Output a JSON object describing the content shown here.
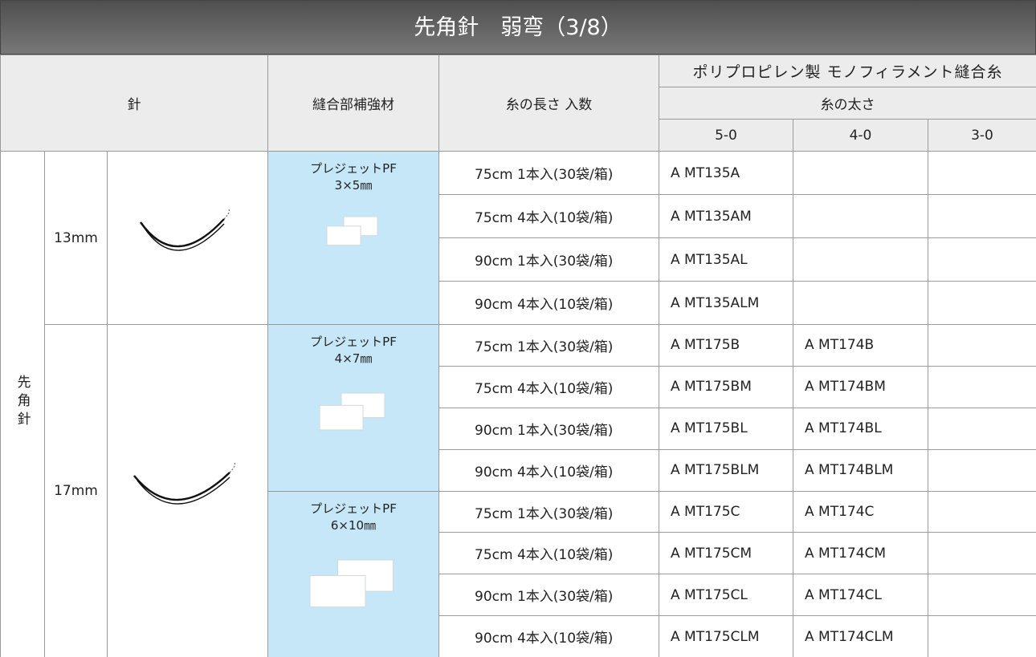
{
  "title": "先角針　弱弯（3/8）",
  "header": {
    "needle": "針",
    "reinforcement": "縫合部補強材",
    "length": "糸の長さ 入数",
    "suture": "ポリプロピレン製 モノフィラメント縫合糸",
    "thickness": "糸の太さ",
    "sizes": [
      "5-0",
      "4-0",
      "3-0"
    ]
  },
  "needle_type": "先角針",
  "needles": [
    {
      "length": "13mm",
      "pledgets": [
        {
          "name": "プレジェットPF",
          "size": "3×5㎜",
          "rows": [
            {
              "length": "75cm 1本入(30袋/箱)",
              "codes": [
                "A MT135A",
                null,
                null
              ]
            },
            {
              "length": "75cm 4本入(10袋/箱)",
              "codes": [
                "A MT135AM",
                null,
                null
              ]
            },
            {
              "length": "90cm 1本入(30袋/箱)",
              "codes": [
                "A MT135AL",
                null,
                null
              ]
            },
            {
              "length": "90cm 4本入(10袋/箱)",
              "codes": [
                "A MT135ALM",
                null,
                null
              ]
            }
          ]
        }
      ]
    },
    {
      "length": "17mm",
      "pledgets": [
        {
          "name": "プレジェットPF",
          "size": "4×7㎜",
          "rows": [
            {
              "length": "75cm 1本入(30袋/箱)",
              "codes": [
                "A MT175B",
                "A MT174B",
                null
              ]
            },
            {
              "length": "75cm 4本入(10袋/箱)",
              "codes": [
                "A MT175BM",
                "A MT174BM",
                null
              ]
            },
            {
              "length": "90cm 1本入(30袋/箱)",
              "codes": [
                "A MT175BL",
                "A MT174BL",
                null
              ]
            },
            {
              "length": "90cm 4本入(10袋/箱)",
              "codes": [
                "A MT175BLM",
                "A MT174BLM",
                null
              ]
            }
          ]
        },
        {
          "name": "プレジェットPF",
          "size": "6×10㎜",
          "rows": [
            {
              "length": "75cm 1本入(30袋/箱)",
              "codes": [
                "A MT175C",
                "A MT174C",
                null
              ]
            },
            {
              "length": "75cm 4本入(10袋/箱)",
              "codes": [
                "A MT175CM",
                "A MT174CM",
                null
              ]
            },
            {
              "length": "90cm 1本入(30袋/箱)",
              "codes": [
                "A MT175CL",
                "A MT174CL",
                null
              ]
            },
            {
              "length": "90cm 4本入(10袋/箱)",
              "codes": [
                "A MT175CLM",
                "A MT174CLM",
                null
              ]
            }
          ]
        }
      ]
    }
  ]
}
